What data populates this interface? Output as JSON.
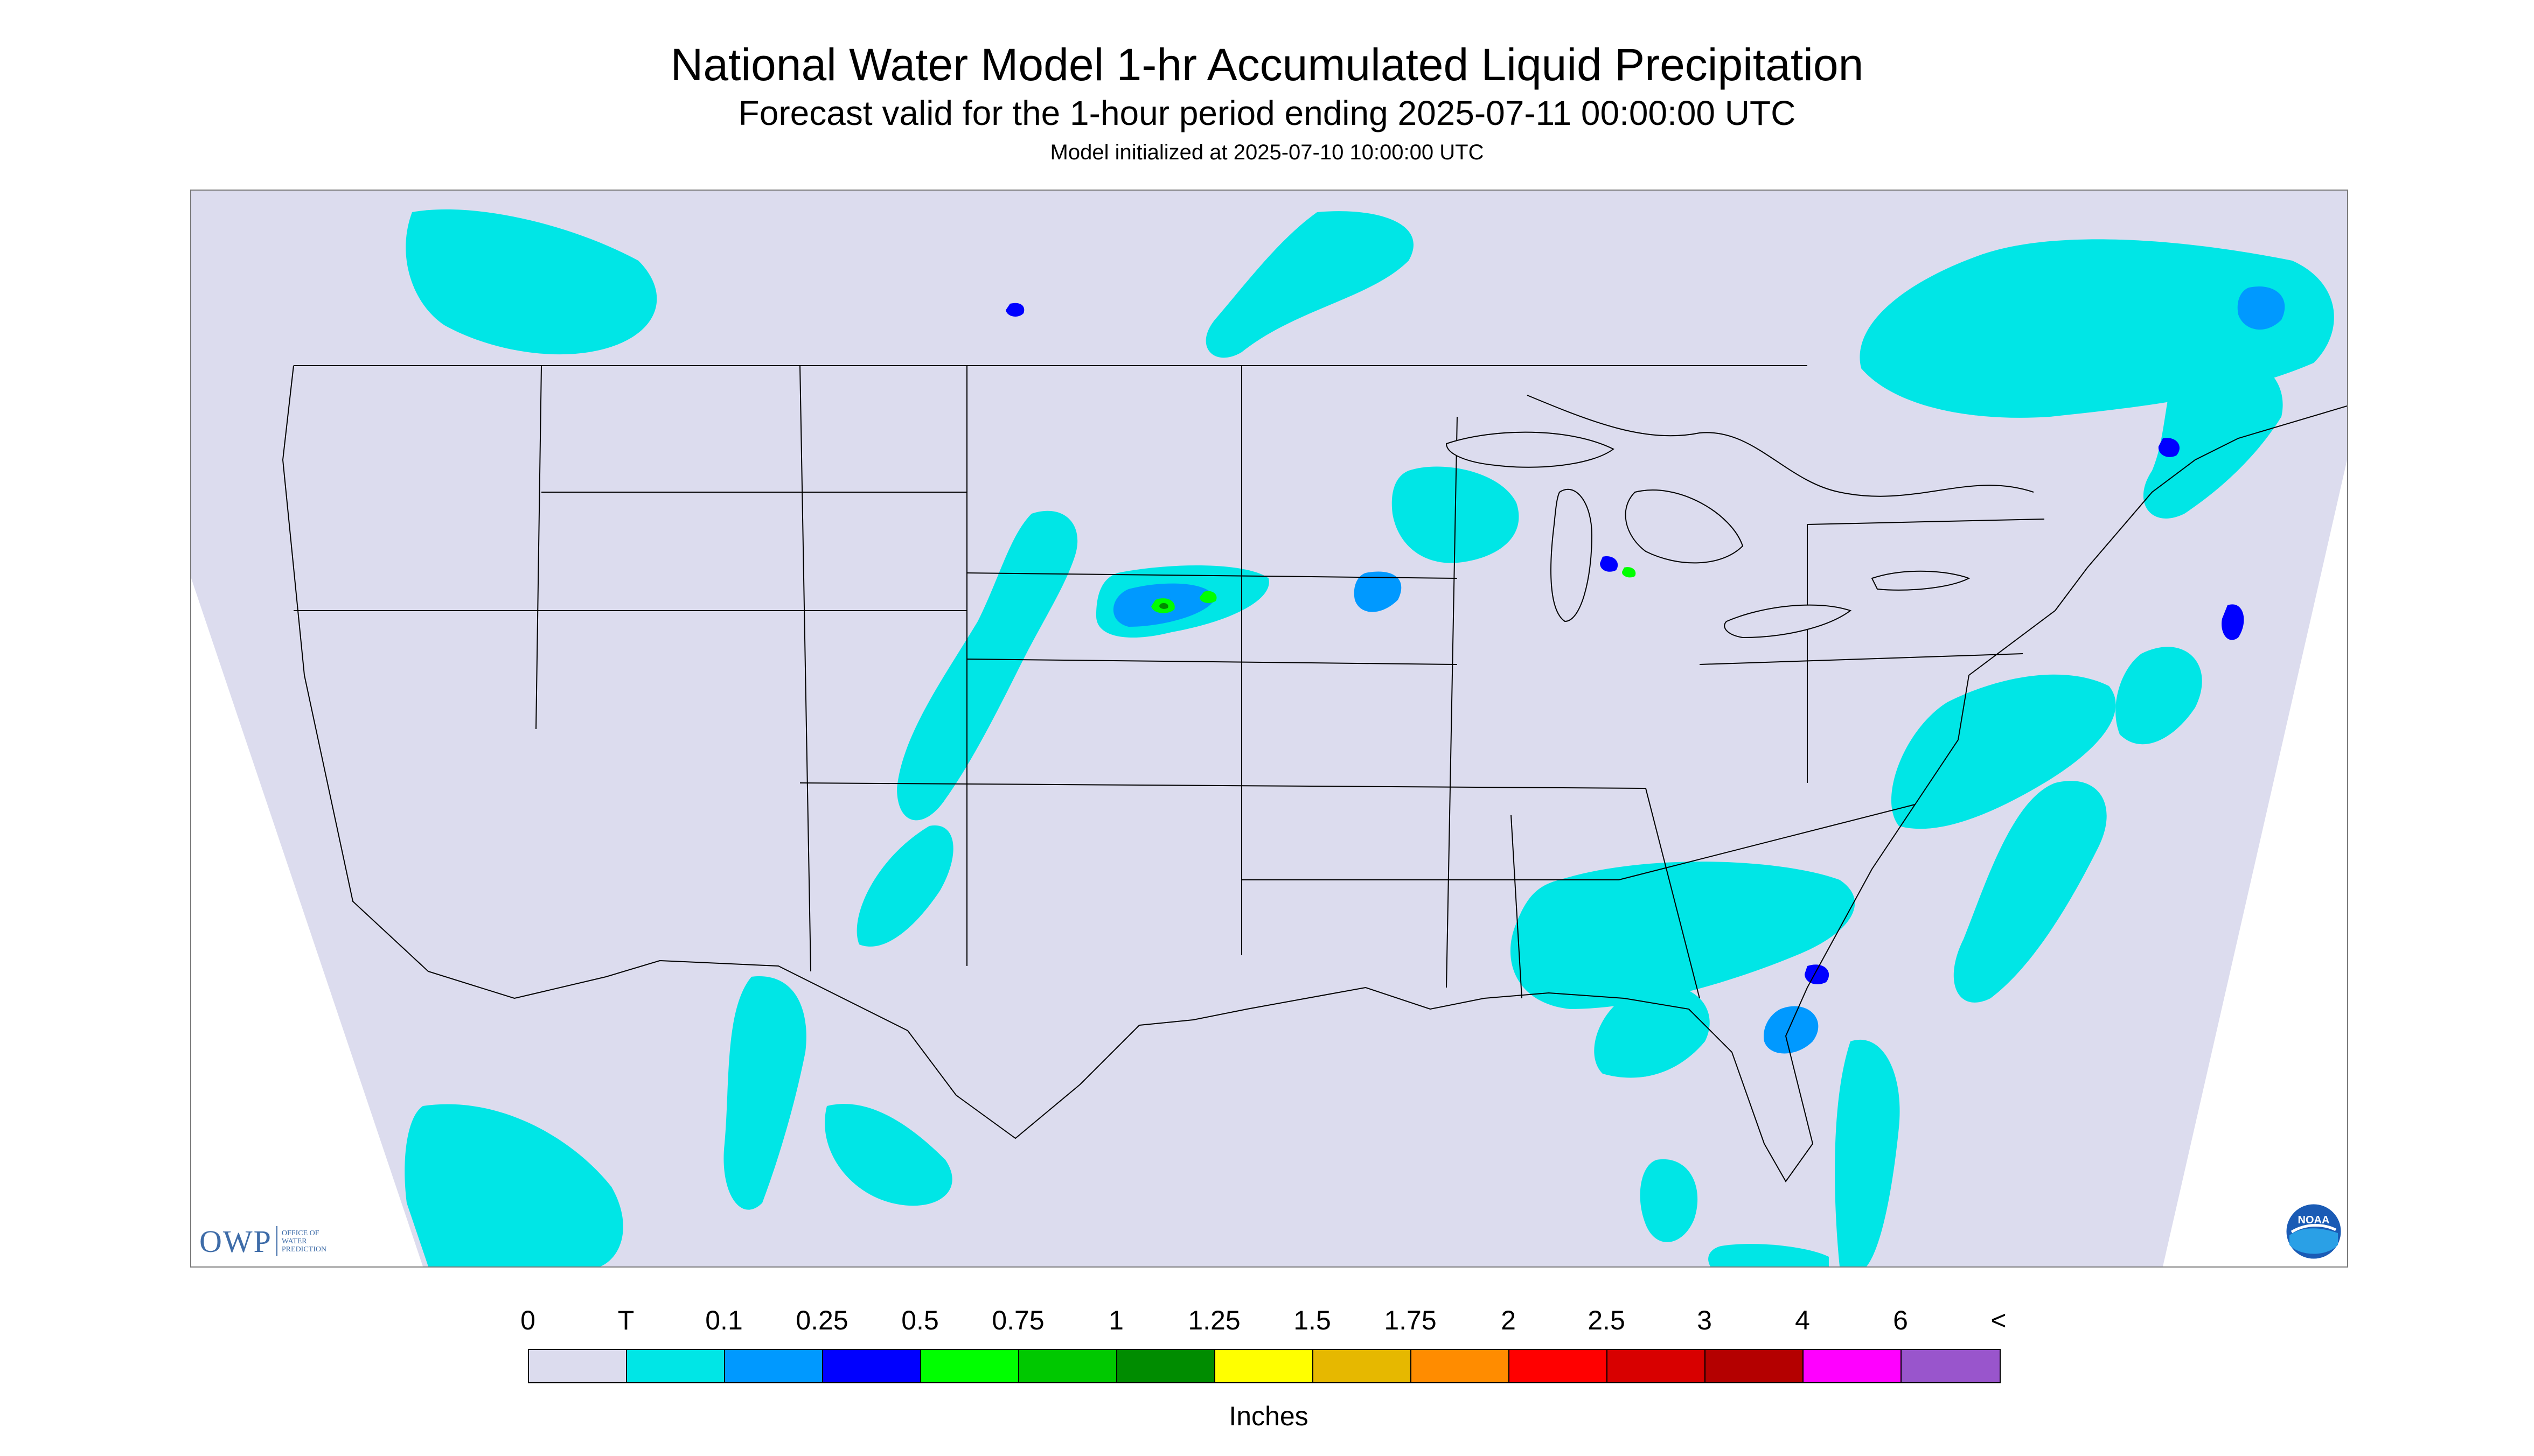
{
  "title": "National Water Model 1-hr Accumulated Liquid Precipitation",
  "subtitle": "Forecast valid for the 1-hour period ending 2025-07-11 00:00:00 UTC",
  "init_text": "Model initialized at 2025-07-10 10:00:00 UTC",
  "colors": {
    "map_background": "#dcdcee",
    "outside_projection": "#ffffff",
    "boundary_lines": "#000000",
    "precip_trace": "#00e6e6",
    "precip_0_1": "#0099ff",
    "precip_0_25": "#0000ff",
    "precip_0_5": "#00ff00",
    "precip_0_75": "#00c800",
    "precip_1": "#008c00"
  },
  "logos": {
    "owp": {
      "letters": "OWP",
      "words": [
        "OFFICE OF",
        "WATER",
        "PREDICTION"
      ],
      "icon": "owp-logo"
    },
    "noaa": {
      "text": "NOAA",
      "icon": "noaa-logo"
    }
  },
  "legend": {
    "unit": "Inches",
    "ticks": [
      "0",
      "T",
      "0.1",
      "0.25",
      "0.5",
      "0.75",
      "1",
      "1.25",
      "1.5",
      "1.75",
      "2",
      "2.5",
      "3",
      "4",
      "6",
      "<"
    ],
    "colors": [
      "#dcdcee",
      "#00e6e6",
      "#0099ff",
      "#0000ff",
      "#00ff00",
      "#00c800",
      "#008c00",
      "#ffff00",
      "#e6b800",
      "#ff8c00",
      "#ff0000",
      "#d80000",
      "#b40000",
      "#ff00ff",
      "#9955cc"
    ]
  }
}
